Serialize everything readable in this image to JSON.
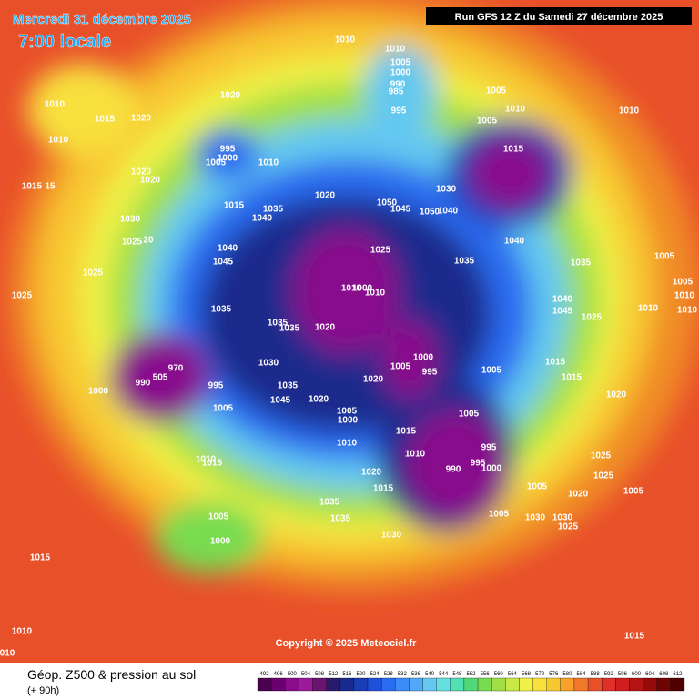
{
  "header": {
    "date": "Mercredi 31 décembre 2025",
    "time": "7:00 locale",
    "run": "Run GFS 12 Z du Samedi 27 décembre 2025"
  },
  "map": {
    "copyright": "Copyright © 2025 Meteociel.fr",
    "pressure_labels": [
      "1010",
      "1010",
      "1005",
      "1000",
      "990",
      "985",
      "995",
      "1020",
      "1010",
      "1015",
      "1020",
      "1010",
      "995",
      "1000",
      "1005",
      "1010",
      "1005",
      "1010",
      "1005",
      "1015",
      "1010",
      "1020",
      "1020",
      "1015",
      "15",
      "1020",
      "1030",
      "1050",
      "1045",
      "1050",
      "1040",
      "1015",
      "1035",
      "1040",
      "1030",
      "1025",
      "20",
      "1040",
      "1045",
      "1025",
      "1035",
      "1040",
      "1035",
      "1005",
      "1025",
      "1025",
      "1010",
      "1000",
      "1010",
      "1040",
      "1045",
      "1025",
      "1010",
      "1005",
      "1010",
      "1010",
      "1035",
      "1035",
      "1035",
      "1020",
      "1000",
      "1005",
      "995",
      "970",
      "990",
      "505",
      "995",
      "1030",
      "1035",
      "1045",
      "1000",
      "1020",
      "1005",
      "1015",
      "1015",
      "1020",
      "1005",
      "1000",
      "1010",
      "1005",
      "1005",
      "1015",
      "1010",
      "995",
      "990",
      "995",
      "1000",
      "1020",
      "1025",
      "1025",
      "1010",
      "1015",
      "1020",
      "1015",
      "1005",
      "1020",
      "1030",
      "1030",
      "1025",
      "1005",
      "1035",
      "1035",
      "1005",
      "1030",
      "1005",
      "1000",
      "1015",
      "1010",
      "010",
      "1015"
    ]
  },
  "footer": {
    "title": "Géop. Z500 & pression au sol",
    "lead": "(+ 90h)"
  },
  "legend": {
    "values": [
      492,
      496,
      500,
      504,
      508,
      512,
      516,
      520,
      524,
      528,
      532,
      536,
      540,
      544,
      548,
      552,
      556,
      560,
      564,
      568,
      572,
      576,
      580,
      584,
      588,
      592,
      596,
      600,
      604,
      608,
      612
    ],
    "colors": [
      "#4b0050",
      "#6a006e",
      "#880c8c",
      "#9a1c9a",
      "#6a146e",
      "#2a1a6a",
      "#1a2a8c",
      "#1a3cb4",
      "#1e50dc",
      "#2a6cf0",
      "#3c8cf8",
      "#50aaf8",
      "#64c8f0",
      "#64e0e0",
      "#50e0b4",
      "#50d878",
      "#78dc50",
      "#a0e046",
      "#c8e846",
      "#f0f046",
      "#f8e03c",
      "#f8c832",
      "#f8a028",
      "#f07828",
      "#e85028",
      "#e03028",
      "#d01e1e",
      "#b41414",
      "#960a0a",
      "#700404",
      "#500000"
    ]
  }
}
